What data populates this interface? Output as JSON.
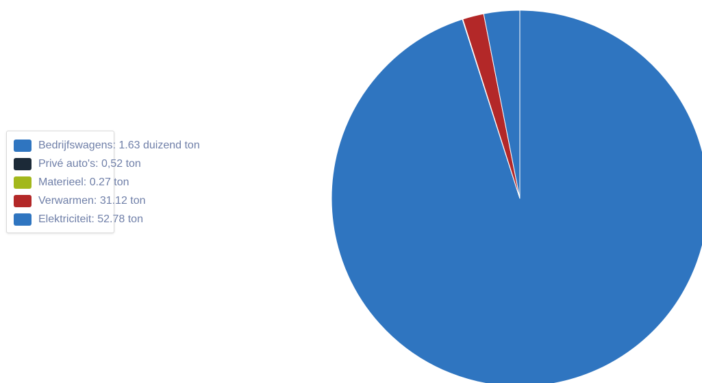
{
  "chart_data": {
    "type": "pie",
    "title": "",
    "legend_position": "left",
    "slices": [
      {
        "label": "Bedrijfswagens: 1.63 duizend ton",
        "value": 1630,
        "color": "#2f75c0"
      },
      {
        "label": "Privé auto's: 0,52 ton",
        "value": 0.52,
        "color": "#1c2a38"
      },
      {
        "label": "Materieel: 0.27 ton",
        "value": 0.27,
        "color": "#a3b81c"
      },
      {
        "label": "Verwarmen: 31.12 ton",
        "value": 31.12,
        "color": "#b32828"
      },
      {
        "label": "Elektriciteit: 52.78 ton",
        "value": 52.78,
        "color": "#2f75c0"
      }
    ]
  }
}
